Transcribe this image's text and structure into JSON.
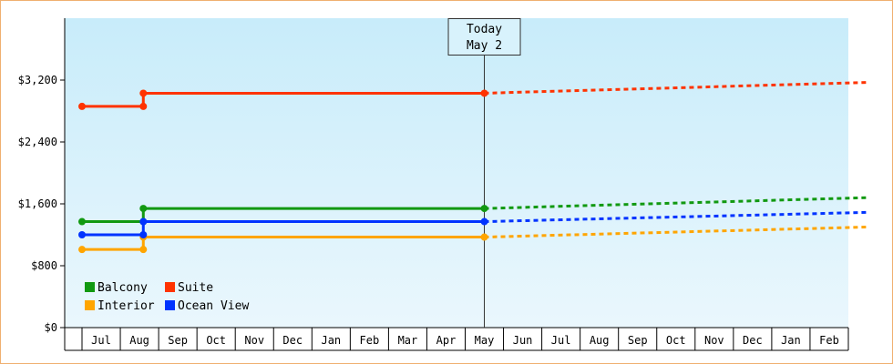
{
  "chart_data": {
    "type": "line",
    "title": "",
    "xlabel": "",
    "ylabel": "",
    "ylim": [
      0,
      4000
    ],
    "yticks": [
      "$0",
      "$800",
      "$1,600",
      "$2,400",
      "$3,200"
    ],
    "ytick_values": [
      0,
      800,
      1600,
      2400,
      3200
    ],
    "x_months": [
      "Jul",
      "Aug",
      "Sep",
      "Oct",
      "Nov",
      "Dec",
      "Jan",
      "Feb",
      "Mar",
      "Apr",
      "May",
      "Jun",
      "Jul",
      "Aug",
      "Sep",
      "Oct",
      "Nov",
      "Dec",
      "Jan",
      "Feb"
    ],
    "grid": false,
    "legend_position": "bottom-left",
    "today_marker": {
      "line1": "Today",
      "line2": "May 2",
      "x": 10.0
    },
    "series": [
      {
        "name": "Balcony",
        "color": "#119911",
        "historical": [
          [
            -0.5,
            1370
          ],
          [
            1.1,
            1370
          ],
          [
            1.1,
            1540
          ],
          [
            10.0,
            1540
          ]
        ],
        "historical_points": [
          [
            -0.5,
            1370
          ],
          [
            1.1,
            1370
          ],
          [
            1.1,
            1540
          ],
          [
            10.0,
            1540
          ]
        ],
        "forecast": [
          [
            10.0,
            1540
          ],
          [
            20.0,
            1680
          ]
        ]
      },
      {
        "name": "Suite",
        "color": "#ff3300",
        "historical": [
          [
            -0.5,
            2860
          ],
          [
            1.1,
            2860
          ],
          [
            1.1,
            3030
          ],
          [
            10.0,
            3030
          ]
        ],
        "historical_points": [
          [
            -0.5,
            2860
          ],
          [
            1.1,
            2860
          ],
          [
            1.1,
            3030
          ],
          [
            10.0,
            3030
          ]
        ],
        "forecast": [
          [
            10.0,
            3030
          ],
          [
            20.0,
            3170
          ]
        ]
      },
      {
        "name": "Interior",
        "color": "#ffa500",
        "historical": [
          [
            -0.5,
            1010
          ],
          [
            1.1,
            1010
          ],
          [
            1.1,
            1170
          ],
          [
            10.0,
            1170
          ]
        ],
        "historical_points": [
          [
            -0.5,
            1010
          ],
          [
            1.1,
            1010
          ],
          [
            1.1,
            1170
          ],
          [
            10.0,
            1170
          ]
        ],
        "forecast": [
          [
            10.0,
            1170
          ],
          [
            20.0,
            1300
          ]
        ]
      },
      {
        "name": "Ocean View",
        "color": "#0033ff",
        "historical": [
          [
            -0.5,
            1200
          ],
          [
            1.1,
            1200
          ],
          [
            1.1,
            1370
          ],
          [
            10.0,
            1370
          ]
        ],
        "historical_points": [
          [
            -0.5,
            1200
          ],
          [
            1.1,
            1200
          ],
          [
            1.1,
            1370
          ],
          [
            10.0,
            1370
          ]
        ],
        "forecast": [
          [
            10.0,
            1370
          ],
          [
            20.0,
            1490
          ]
        ]
      }
    ]
  }
}
